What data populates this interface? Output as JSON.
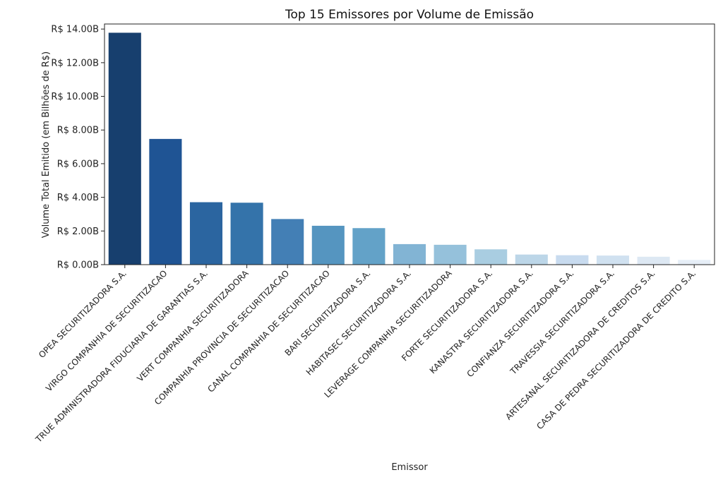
{
  "chart_data": {
    "type": "bar",
    "title": "Top 15 Emissores por Volume de Emissão",
    "xlabel": "Emissor",
    "ylabel": "Volume Total Emitido (em Bilhões de R$)",
    "ylim": [
      0,
      14.3
    ],
    "yticks": [
      0,
      2,
      4,
      6,
      8,
      10,
      12,
      14
    ],
    "ytick_labels": [
      "R$ 0.00B",
      "R$ 2.00B",
      "R$ 4.00B",
      "R$ 6.00B",
      "R$ 8.00B",
      "R$ 10.00B",
      "R$ 12.00B",
      "R$ 14.00B"
    ],
    "grid": false,
    "legend": "none",
    "palette": "Blues (dark to light)",
    "categories": [
      "OPEA SECURITIZADORA S.A.",
      "VIRGO COMPANHIA DE SECURITIZACAO",
      "TRUE ADMINISTRADORA FIDUCIARIA DE GARANTIAS S.A.",
      "VERT COMPANHIA SECURITIZADORA",
      "COMPANHIA PROVINCIA DE SECURITIZACAO",
      "CANAL COMPANHIA DE SECURITIZACAO",
      "BARI SECURITIZADORA S.A.",
      "HABITASEC SECURITIZADORA S.A.",
      "LEVERAGE COMPANHIA SECURITIZADORA",
      "FORTE SECURITIZADORA S.A.",
      "KANASTRA SECURITIZADORA S.A.",
      "CONFIANZA SECURITIZADORA S.A.",
      "TRAVESSIA SECURITIZADORA S.A.",
      "ARTESANAL SECURITIZADORA DE CREDITOS S.A.",
      "CASA DE PEDRA SECURITIZADORA DE CREDITO S.A."
    ],
    "values": [
      13.78,
      7.47,
      3.71,
      3.68,
      2.71,
      2.31,
      2.17,
      1.22,
      1.18,
      0.91,
      0.6,
      0.56,
      0.54,
      0.47,
      0.28
    ],
    "colors": [
      "#173f6e",
      "#1f5494",
      "#2b65a0",
      "#3473aa",
      "#437fb5",
      "#5595c0",
      "#63a2c8",
      "#82b4d4",
      "#95c1db",
      "#a9cde1",
      "#bcd6e8",
      "#c8dbef",
      "#d0e1f0",
      "#dde8f3",
      "#e6eef7"
    ]
  }
}
